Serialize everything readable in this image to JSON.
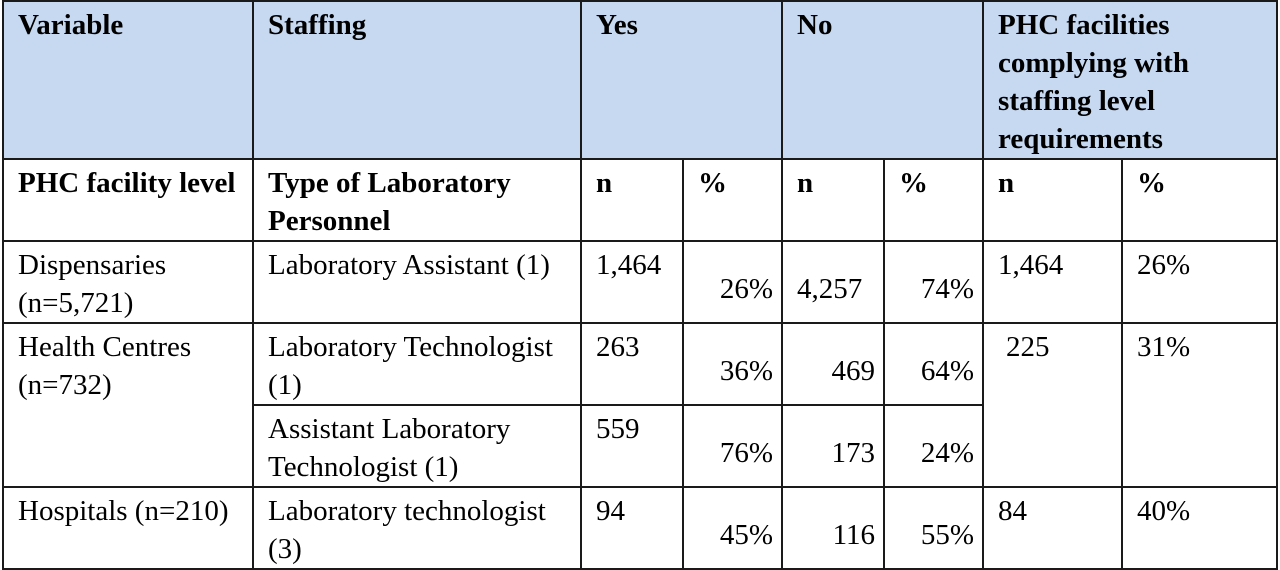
{
  "table": {
    "header": {
      "variable": "Variable",
      "staffing": "Staffing",
      "yes": "Yes",
      "no": "No",
      "compliance": "PHC facilities complying with staffing level requirements"
    },
    "subheader": {
      "level": "PHC facility level",
      "personnel": "Type of Laboratory Personnel",
      "yes_n": "n",
      "yes_pct": "%",
      "no_n": "n",
      "no_pct": "%",
      "comp_n": "n",
      "comp_pct": "%"
    },
    "rows": [
      {
        "facility": "Dispensaries (n=5,721)",
        "personnel": "Laboratory Assistant (1)",
        "yes_n": "1,464",
        "yes_pct": "26%",
        "no_n": "4,257",
        "no_pct": "74%",
        "comp_n": "1,464",
        "comp_pct": "26%"
      },
      {
        "facility": "Health Centres (n=732)",
        "personnel": "Laboratory Technologist (1)",
        "yes_n": "263",
        "yes_pct": "36%",
        "no_n": "469",
        "no_pct": "64%",
        "comp_n": "225",
        "comp_pct": "31%"
      },
      {
        "personnel": "Assistant Laboratory Technologist (1)",
        "yes_n": "559",
        "yes_pct": "76%",
        "no_n": "173",
        "no_pct": "24%"
      },
      {
        "facility": "Hospitals (n=210)",
        "personnel": "Laboratory technologist (3)",
        "yes_n": "94",
        "yes_pct": "45%",
        "no_n": "116",
        "no_pct": "55%",
        "comp_n": "84",
        "comp_pct": "40%"
      }
    ]
  }
}
